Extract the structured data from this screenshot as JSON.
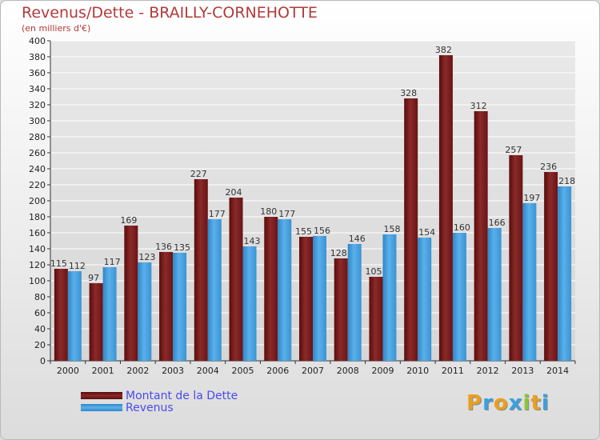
{
  "title": "Revenus/Dette - BRAILLY-CORNEHOTTE",
  "subtitle": "(en milliers d'€)",
  "logo": "Proxiti",
  "colors": {
    "dette": "#7a1a1a",
    "revenus": "#3d9ad8",
    "title": "#b33a3a",
    "legend_text": "#4a4af0"
  },
  "chart_data": {
    "type": "bar",
    "categories": [
      "2000",
      "2001",
      "2002",
      "2003",
      "2004",
      "2005",
      "2006",
      "2007",
      "2008",
      "2009",
      "2010",
      "2011",
      "2012",
      "2013",
      "2014"
    ],
    "series": [
      {
        "name": "Montant de la Dette",
        "values": [
          115,
          97,
          169,
          136,
          227,
          204,
          180,
          155,
          128,
          105,
          328,
          382,
          312,
          257,
          236
        ]
      },
      {
        "name": "Revenus",
        "values": [
          112,
          117,
          123,
          135,
          177,
          143,
          177,
          156,
          146,
          158,
          154,
          160,
          166,
          197,
          218
        ]
      }
    ],
    "title": "Revenus/Dette - BRAILLY-CORNEHOTTE",
    "ylim": [
      0,
      400
    ],
    "yticks": [
      0,
      20,
      40,
      60,
      80,
      100,
      120,
      140,
      160,
      180,
      200,
      220,
      240,
      260,
      280,
      300,
      320,
      340,
      360,
      380,
      400
    ],
    "grid": true,
    "legend": "bottom-left"
  }
}
